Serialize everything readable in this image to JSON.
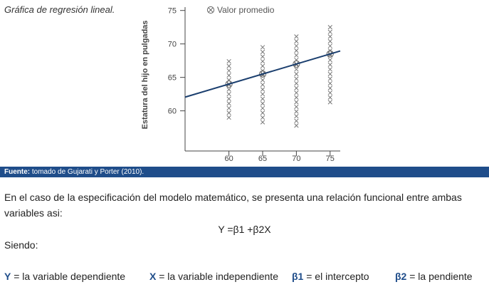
{
  "chart_data": {
    "type": "scatter",
    "title": "Gráfica de regresión lineal.",
    "y_label": "Estatura del hijo en pulgadas",
    "xlim": [
      53.5,
      76.5
    ],
    "ylim": [
      54,
      75.5
    ],
    "xticks": [
      60,
      65,
      70,
      75
    ],
    "yticks": [
      60,
      65,
      70,
      75
    ],
    "legend": "top",
    "series": [
      {
        "marker": "x",
        "color": "#777777",
        "x": [
          60,
          60,
          60,
          60,
          60,
          60,
          60,
          60,
          60,
          60,
          60,
          60,
          60
        ],
        "values": [
          59.0,
          59.7,
          60.4,
          61.1,
          61.8,
          62.5,
          63.2,
          63.9,
          64.6,
          65.3,
          66.0,
          66.7,
          67.4
        ]
      },
      {
        "marker": "x",
        "color": "#777777",
        "x": [
          65,
          65,
          65,
          65,
          65,
          65,
          65,
          65,
          65,
          65,
          65,
          65,
          65,
          65,
          65,
          65,
          65
        ],
        "values": [
          58.3,
          59.0,
          59.7,
          60.4,
          61.1,
          61.8,
          62.5,
          63.2,
          63.9,
          64.6,
          65.3,
          66.0,
          66.7,
          67.4,
          68.1,
          68.8,
          69.5
        ]
      },
      {
        "marker": "x",
        "color": "#777777",
        "x": [
          70,
          70,
          70,
          70,
          70,
          70,
          70,
          70,
          70,
          70,
          70,
          70,
          70,
          70,
          70,
          70,
          70,
          70,
          70,
          70
        ],
        "values": [
          57.8,
          58.5,
          59.2,
          59.9,
          60.6,
          61.3,
          62.0,
          62.7,
          63.4,
          64.1,
          64.8,
          65.5,
          66.2,
          66.9,
          67.6,
          68.3,
          69.0,
          69.7,
          70.4,
          71.1
        ]
      },
      {
        "marker": "x",
        "color": "#777777",
        "x": [
          75,
          75,
          75,
          75,
          75,
          75,
          75,
          75,
          75,
          75,
          75,
          75,
          75,
          75,
          75,
          75,
          75
        ],
        "values": [
          61.3,
          62.0,
          62.7,
          63.4,
          64.1,
          64.8,
          65.5,
          66.2,
          66.9,
          67.6,
          68.3,
          69.0,
          69.7,
          70.4,
          71.1,
          71.8,
          72.5
        ]
      },
      {
        "marker": "circle-x",
        "name": "Valor promedio",
        "color": "#666666",
        "x": [
          60,
          65,
          70,
          75
        ],
        "values": [
          64,
          65.5,
          67,
          68.5
        ]
      },
      {
        "marker": "line",
        "color": "#1a3e6e",
        "x": [
          53.5,
          76.5
        ],
        "values": [
          62.05,
          68.95
        ]
      }
    ]
  },
  "source": {
    "label": "Fuente:",
    "text": " tomado de Gujarati y Porter (2010)."
  },
  "body": {
    "paragraph": "En el caso de la especificación del modelo matemático, se presenta una relación funcional entre ambas variables asi:",
    "formula": "Y =β1 +β2X",
    "intro": "Siendo:",
    "definitions": [
      {
        "symbol": "Y",
        "text": " = la variable dependiente"
      },
      {
        "symbol": "X",
        "text": " = la variable independiente"
      },
      {
        "symbol": "β1",
        "text": " = el intercepto"
      },
      {
        "symbol": "β2",
        "text": " = la pendiente"
      }
    ]
  }
}
